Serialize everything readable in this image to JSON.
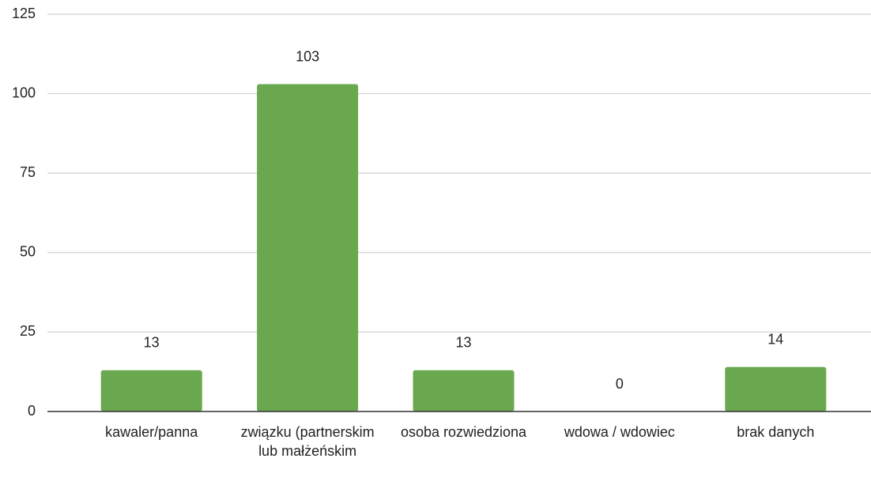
{
  "chart_data": {
    "type": "bar",
    "categories": [
      "kawaler/panna",
      "związku (partnerskim lub małżeńskim",
      "osoba rozwiedziona",
      "wdowa / wdowiec",
      "brak danych"
    ],
    "values": [
      13,
      103,
      13,
      0,
      14
    ],
    "color": "#6aa84f",
    "ylim": [
      0,
      125
    ],
    "yticks": [
      0,
      25,
      50,
      75,
      100,
      125
    ],
    "grid": true
  }
}
